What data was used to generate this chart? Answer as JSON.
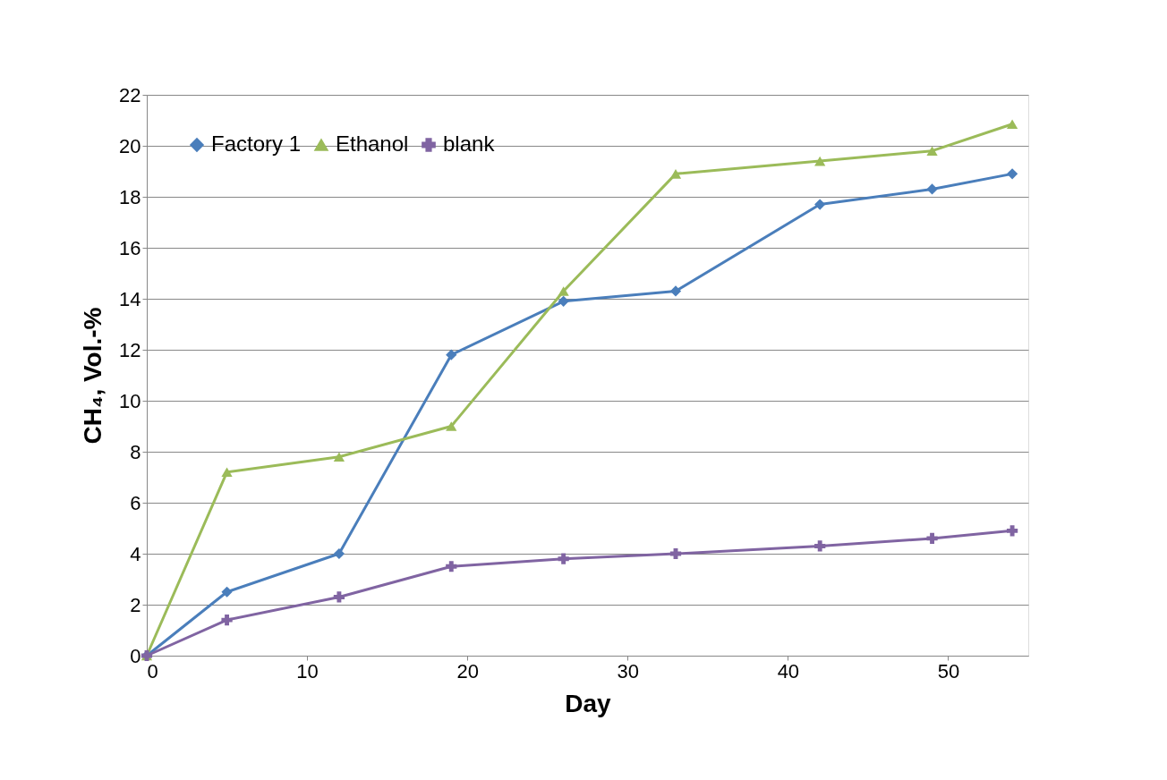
{
  "chart_data": {
    "type": "line",
    "xlabel": "Day",
    "ylabel": "CH₄, Vol.-%",
    "x": [
      0,
      5,
      12,
      19,
      26,
      33,
      42,
      49,
      54
    ],
    "xlim": [
      0,
      55
    ],
    "xticks": [
      0,
      10,
      20,
      30,
      40,
      50
    ],
    "ylim": [
      0,
      22
    ],
    "yticks": [
      0,
      2,
      4,
      6,
      8,
      10,
      12,
      14,
      16,
      18,
      20,
      22
    ],
    "grid": "y",
    "legend": "top left",
    "line_style": "solid",
    "series": [
      {
        "name": "Factory 1",
        "color": "#4a7ebb",
        "marker": "diamond",
        "values": [
          0,
          2.5,
          4,
          11.8,
          13.9,
          14.3,
          17.7,
          18.3,
          18.9
        ]
      },
      {
        "name": "Ethanol",
        "color": "#9bbb59",
        "marker": "triangle",
        "values": [
          0,
          7.2,
          7.8,
          9,
          14.3,
          18.9,
          19.4,
          19.8,
          20.85
        ]
      },
      {
        "name": "blank",
        "color": "#8064a2",
        "marker": "cross",
        "values": [
          0,
          1.4,
          2.3,
          3.5,
          3.8,
          4.0,
          4.3,
          4.6,
          4.9
        ]
      }
    ]
  }
}
